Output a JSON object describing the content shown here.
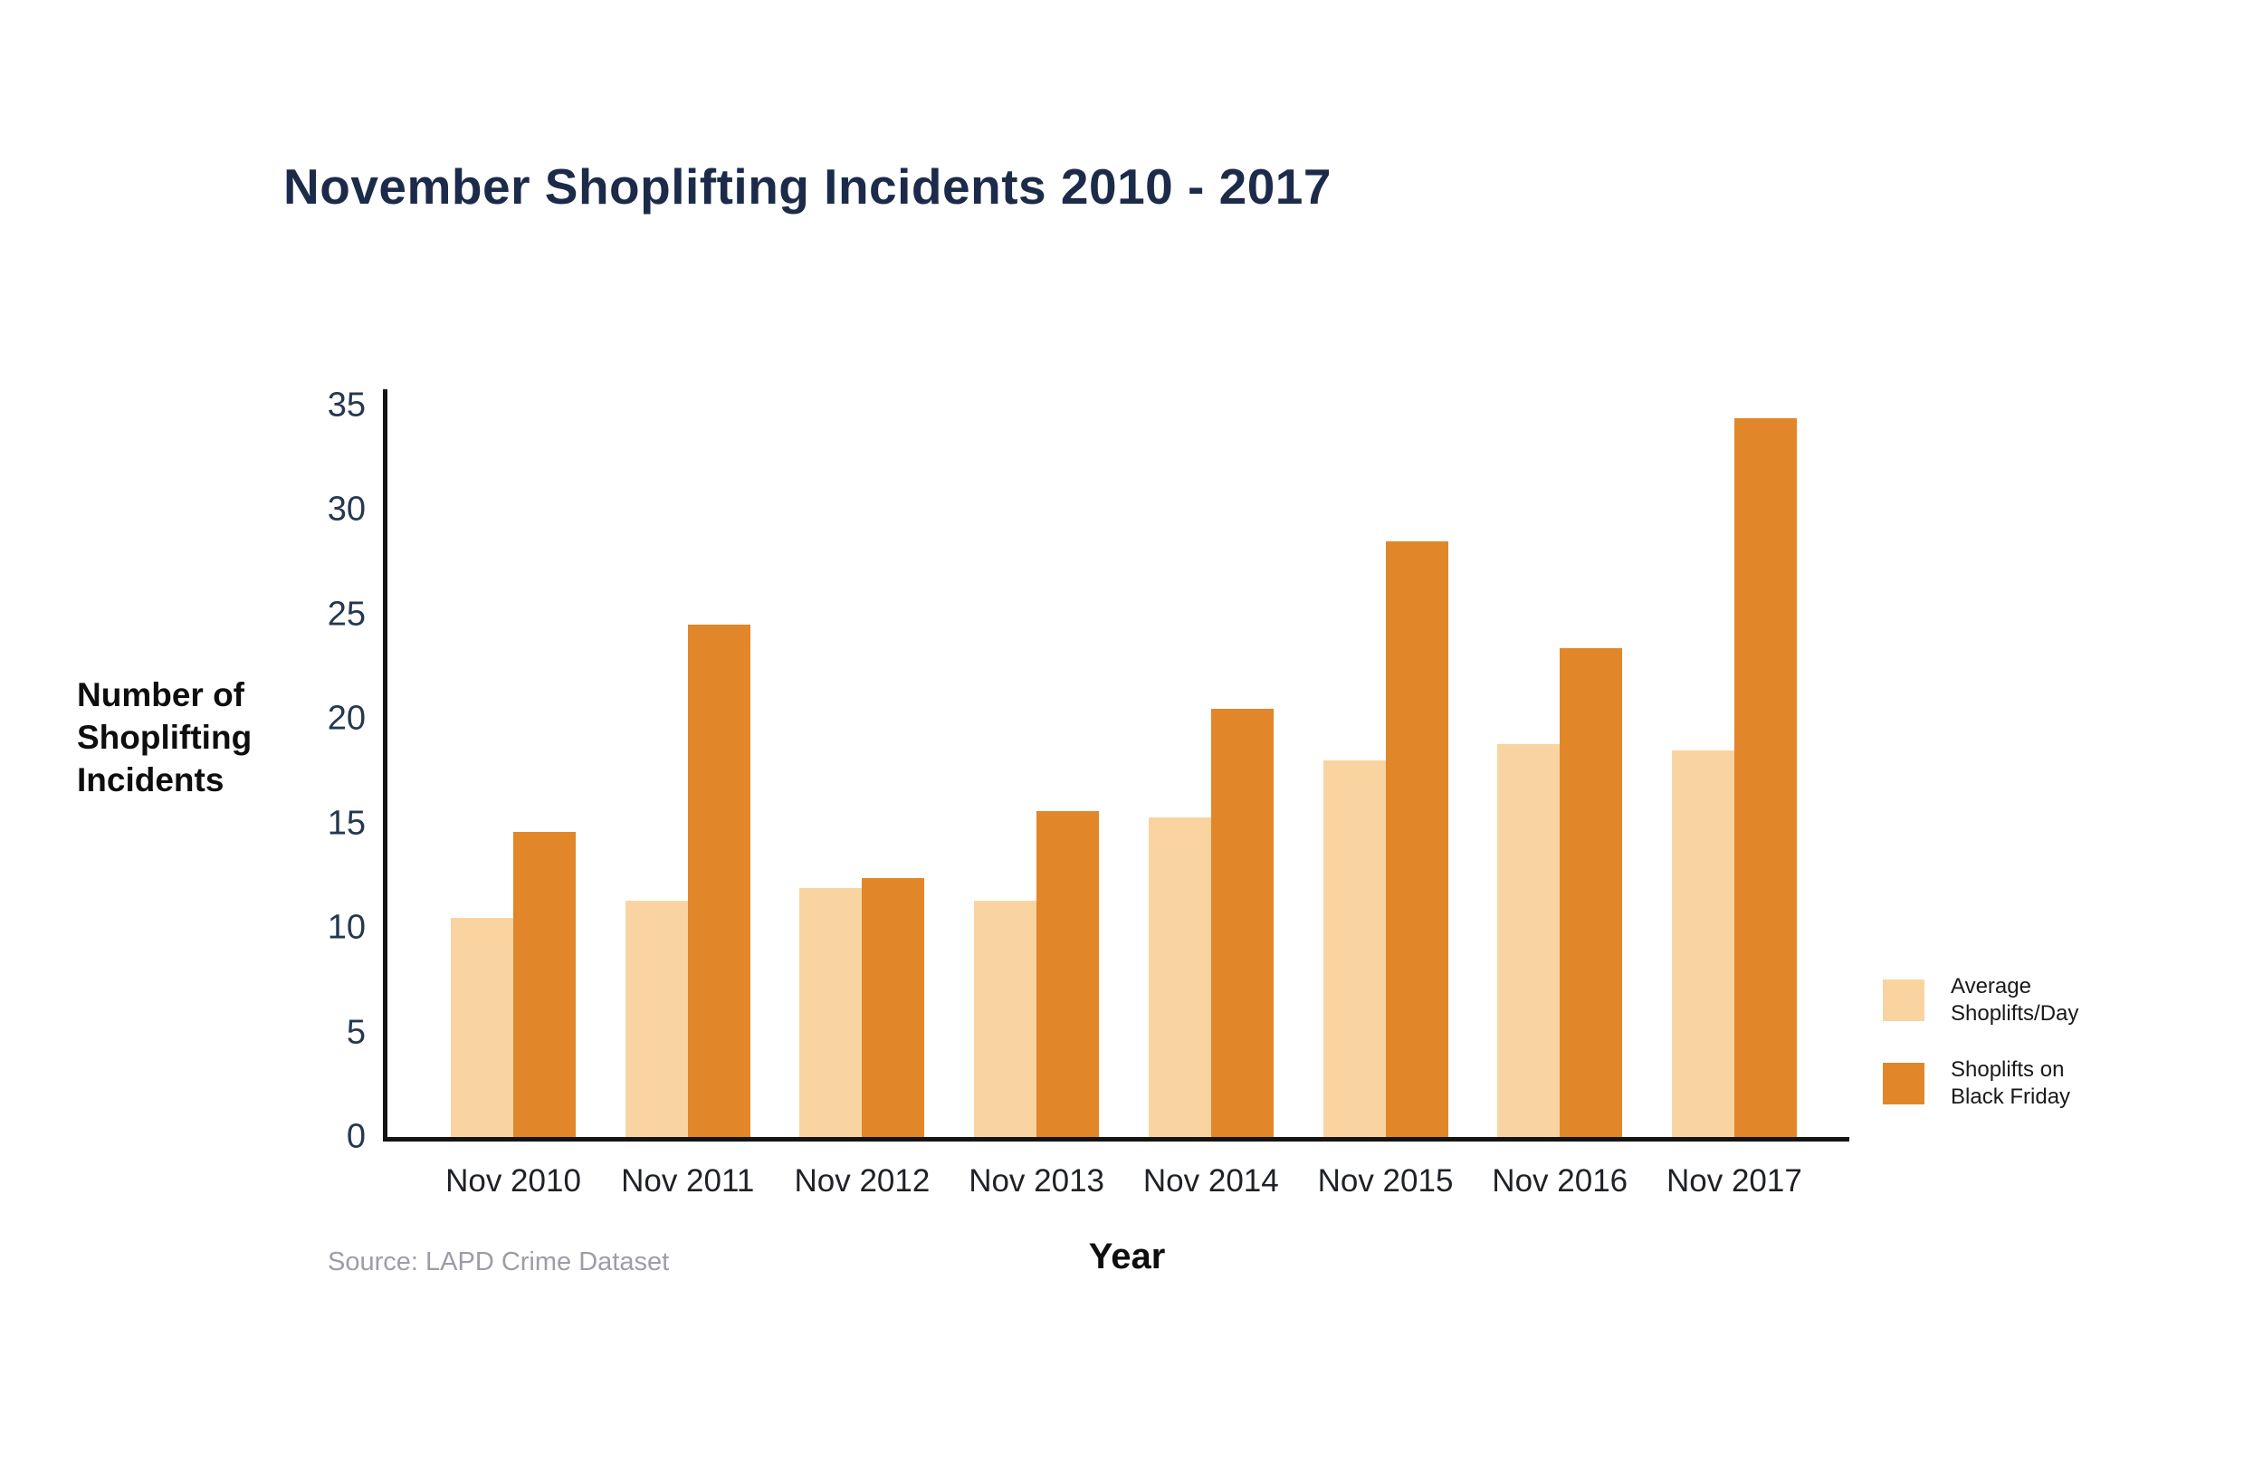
{
  "title": "November Shoplifting Incidents 2010 - 2017",
  "y_axis_title": "Number of\nShoplifting\nIncidents",
  "x_axis_title": "Year",
  "source": "Source: LAPD Crime Dataset",
  "colors": {
    "average_bar": "#FAD4A0",
    "black_friday_bar": "#E2862A",
    "title_navy": "#1C2B4A",
    "axis_line": "#141414",
    "source_gray": "#9C9DA6"
  },
  "legend": [
    {
      "label": "Average\nShoplifts/Day",
      "color": "#FAD4A0"
    },
    {
      "label": "Shoplifts on\nBlack Friday",
      "color": "#E2862A"
    }
  ],
  "chart_data": {
    "type": "bar",
    "title": "November Shoplifting Incidents 2010 - 2017",
    "xlabel": "Year",
    "ylabel": "Number of Shoplifting Incidents",
    "categories": [
      "Nov 2010",
      "Nov 2011",
      "Nov 2012",
      "Nov 2013",
      "Nov 2014",
      "Nov 2015",
      "Nov 2016",
      "Nov 2017"
    ],
    "series": [
      {
        "name": "Average Shoplifts/Day",
        "color": "#FAD4A0",
        "values": [
          10.5,
          11.3,
          11.9,
          11.3,
          15.3,
          18.0,
          18.8,
          18.5
        ]
      },
      {
        "name": "Shoplifts on Black Friday",
        "color": "#E2862A",
        "values": [
          14.6,
          24.5,
          12.4,
          15.6,
          20.5,
          28.5,
          23.4,
          34.4
        ]
      }
    ],
    "ylim": [
      0,
      35
    ],
    "yticks": [
      0,
      5,
      10,
      15,
      20,
      25,
      30,
      35
    ],
    "grid": false,
    "legend_position": "right"
  }
}
